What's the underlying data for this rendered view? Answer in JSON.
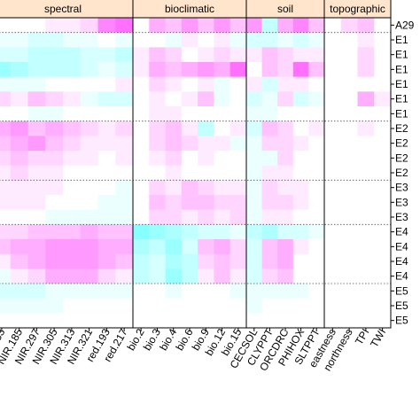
{
  "chart_data": {
    "type": "heatmap",
    "colors": {
      "strip_fill": "#ffe5cc",
      "positive": "#ff33ff",
      "negative": "#33ffff",
      "neutral": "#ffffff",
      "frame": "#000000"
    },
    "panels": [
      {
        "label": "spectral",
        "columns": [
          "153",
          "NIR.185",
          "NIR.297",
          "NIR.305",
          "NIR.313",
          "NIR.321",
          "red.193",
          "red.217"
        ]
      },
      {
        "label": "bioclimatic",
        "columns": [
          "bio.2",
          "bio.3",
          "bio.4",
          "bio.6",
          "bio.9",
          "bio.12",
          "bio.15"
        ]
      },
      {
        "label": "soil",
        "columns": [
          "CECSOL",
          "CLYPPT",
          "ORCDRC",
          "PHIHOX",
          "SLTPPT"
        ]
      },
      {
        "label": "topographic",
        "columns": [
          "eastness",
          "northness",
          "TPI",
          "TWI"
        ]
      }
    ],
    "row_labels": [
      "A29",
      "E1",
      "E1",
      "E1",
      "E1",
      "E1",
      "E1",
      "E2",
      "E2",
      "E2",
      "E2",
      "E3",
      "E3",
      "E3",
      "E4",
      "E4",
      "E4",
      "E4",
      "E5",
      "E5",
      "E5"
    ],
    "row_groups_after": [
      0,
      6,
      10,
      13,
      17
    ],
    "values": [
      [
        0.0,
        0.0,
        0.0,
        0.1,
        0.1,
        0.2,
        0.6,
        0.7,
        0.0,
        0.4,
        0.3,
        0.5,
        0.3,
        0.5,
        0.3,
        0.5,
        -0.3,
        0.4,
        0.6,
        0.3,
        0.0,
        0.2,
        0.3,
        0.0
      ],
      [
        -0.1,
        -0.1,
        -0.2,
        -0.2,
        -0.1,
        -0.1,
        0.0,
        -0.1,
        0.0,
        0.0,
        -0.1,
        0.1,
        0.0,
        0.1,
        -0.1,
        -0.2,
        -0.2,
        -0.1,
        -0.2,
        -0.1,
        0.0,
        0.0,
        0.1,
        0.0
      ],
      [
        -0.2,
        -0.2,
        -0.3,
        -0.3,
        -0.3,
        -0.2,
        -0.2,
        -0.3,
        0.1,
        0.3,
        0.2,
        0.0,
        0.1,
        0.2,
        0.1,
        0.1,
        0.3,
        0.2,
        0.1,
        0.1,
        0.0,
        0.0,
        0.2,
        0.0
      ],
      [
        -0.5,
        -0.4,
        -0.3,
        -0.3,
        -0.3,
        -0.2,
        -0.1,
        -0.2,
        0.1,
        0.4,
        0.3,
        0.4,
        0.5,
        0.4,
        0.7,
        0.0,
        0.3,
        0.2,
        0.7,
        0.3,
        0.0,
        0.0,
        0.2,
        0.0
      ],
      [
        -0.1,
        -0.1,
        -0.1,
        0.0,
        0.0,
        0.0,
        0.0,
        0.1,
        0.0,
        0.2,
        0.1,
        0.0,
        0.1,
        -0.1,
        0.0,
        0.1,
        -0.2,
        0.1,
        0.1,
        0.0,
        0.0,
        0.0,
        0.0,
        0.0
      ],
      [
        0.2,
        0.1,
        0.3,
        0.2,
        0.1,
        -0.1,
        -0.2,
        -0.2,
        0.0,
        0.1,
        0.0,
        0.1,
        0.3,
        -0.1,
        0.0,
        -0.2,
        -0.1,
        0.2,
        -0.2,
        -0.1,
        0.0,
        0.0,
        0.4,
        0.1
      ],
      [
        0.0,
        0.0,
        -0.1,
        -0.1,
        0.0,
        0.0,
        0.0,
        0.0,
        0.0,
        0.1,
        0.1,
        0.0,
        0.0,
        0.0,
        0.0,
        -0.1,
        -0.1,
        0.0,
        0.0,
        0.0,
        0.0,
        0.0,
        0.0,
        0.0
      ],
      [
        0.4,
        0.5,
        0.3,
        0.4,
        0.3,
        0.2,
        0.1,
        0.2,
        0.0,
        0.2,
        0.3,
        0.1,
        -0.3,
        0.0,
        0.1,
        -0.2,
        0.3,
        0.2,
        0.0,
        0.1,
        0.0,
        0.0,
        0.1,
        0.0
      ],
      [
        0.3,
        0.4,
        0.5,
        0.3,
        0.2,
        0.1,
        0.1,
        0.1,
        0.0,
        0.2,
        0.3,
        0.2,
        0.1,
        0.1,
        -0.1,
        -0.1,
        0.2,
        0.2,
        0.1,
        0.0,
        0.0,
        0.0,
        0.0,
        0.0
      ],
      [
        0.2,
        0.3,
        0.2,
        0.2,
        0.1,
        0.1,
        0.0,
        0.1,
        0.0,
        0.1,
        0.2,
        0.0,
        0.1,
        0.0,
        0.0,
        -0.1,
        -0.1,
        0.2,
        0.0,
        0.0,
        0.0,
        0.0,
        0.0,
        0.0
      ],
      [
        0.1,
        0.2,
        0.1,
        0.1,
        0.0,
        0.0,
        0.0,
        0.0,
        0.0,
        0.0,
        0.1,
        0.0,
        0.0,
        0.0,
        0.0,
        -0.1,
        0.1,
        0.1,
        0.0,
        0.0,
        0.0,
        0.0,
        0.0,
        0.0
      ],
      [
        0.1,
        0.1,
        0.1,
        0.1,
        0.0,
        0.0,
        0.0,
        -0.1,
        0.0,
        0.2,
        0.1,
        0.3,
        0.2,
        0.1,
        0.1,
        -0.1,
        0.2,
        0.1,
        0.1,
        0.0,
        0.0,
        0.0,
        0.0,
        0.0
      ],
      [
        0.1,
        0.1,
        0.1,
        0.0,
        0.0,
        0.0,
        -0.1,
        -0.1,
        0.0,
        0.3,
        0.2,
        0.3,
        0.3,
        0.2,
        0.2,
        -0.1,
        0.2,
        0.2,
        0.1,
        0.0,
        0.0,
        0.0,
        0.0,
        0.0
      ],
      [
        0.0,
        0.0,
        0.0,
        -0.1,
        -0.1,
        -0.1,
        -0.1,
        -0.1,
        0.0,
        0.2,
        0.2,
        0.1,
        0.2,
        0.1,
        0.2,
        -0.1,
        0.1,
        0.1,
        0.0,
        0.0,
        0.0,
        0.0,
        0.0,
        0.0
      ],
      [
        0.2,
        0.2,
        0.3,
        0.3,
        0.3,
        0.4,
        0.3,
        0.3,
        -0.6,
        -0.5,
        -0.4,
        -0.3,
        -0.2,
        -0.2,
        -0.1,
        -0.3,
        -0.4,
        -0.2,
        -0.2,
        -0.1,
        0.0,
        0.0,
        0.0,
        0.0
      ],
      [
        0.3,
        0.4,
        0.4,
        0.5,
        0.5,
        0.5,
        0.4,
        0.4,
        -0.4,
        -0.3,
        -0.5,
        -0.2,
        0.3,
        0.4,
        0.2,
        -0.2,
        0.3,
        0.4,
        0.1,
        0.0,
        0.0,
        0.0,
        0.0,
        0.0
      ],
      [
        0.1,
        0.3,
        0.4,
        0.5,
        0.5,
        0.5,
        0.4,
        0.3,
        -0.3,
        -0.2,
        -0.4,
        -0.3,
        0.2,
        0.3,
        0.2,
        -0.2,
        0.3,
        0.4,
        0.0,
        0.0,
        0.0,
        0.0,
        0.0,
        0.0
      ],
      [
        -0.1,
        0.1,
        0.2,
        0.4,
        0.4,
        0.4,
        0.2,
        0.1,
        -0.3,
        -0.2,
        -0.5,
        -0.3,
        0.1,
        0.3,
        0.1,
        -0.2,
        0.2,
        0.3,
        0.0,
        0.0,
        0.0,
        0.0,
        0.0,
        0.0
      ],
      [
        -0.2,
        -0.2,
        -0.2,
        -0.1,
        -0.1,
        -0.1,
        -0.1,
        -0.1,
        0.0,
        0.0,
        -0.1,
        0.0,
        0.0,
        0.0,
        -0.1,
        -0.1,
        -0.1,
        -0.1,
        -0.1,
        0.0,
        0.0,
        0.0,
        0.0,
        0.0
      ],
      [
        -0.1,
        -0.1,
        -0.1,
        -0.1,
        0.0,
        0.0,
        0.0,
        0.0,
        0.0,
        0.0,
        0.0,
        0.0,
        0.0,
        0.0,
        0.0,
        -0.1,
        0.0,
        0.0,
        0.0,
        0.0,
        0.0,
        0.0,
        0.0,
        0.0
      ],
      [
        0.0,
        0.0,
        0.0,
        0.0,
        0.0,
        0.0,
        0.0,
        0.0,
        0.0,
        0.0,
        0.0,
        0.0,
        0.0,
        0.0,
        0.0,
        0.0,
        0.0,
        0.0,
        0.0,
        0.0,
        0.0,
        0.0,
        0.0,
        0.0
      ]
    ]
  }
}
